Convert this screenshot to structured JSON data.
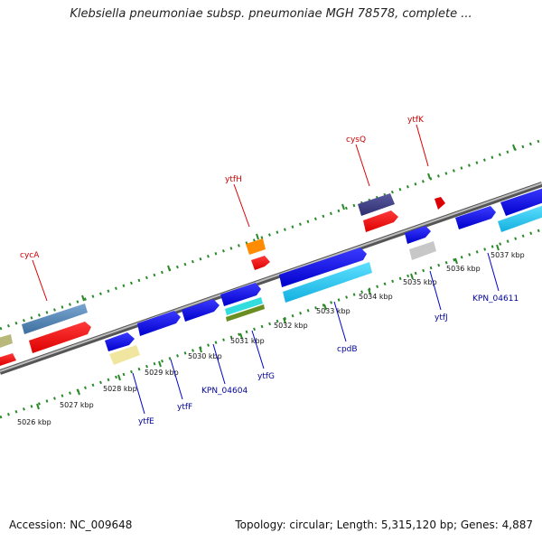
{
  "title": "Klebsiella pneumoniae subsp. pneumoniae MGH 78578, complete ...",
  "footer": {
    "accession": "Accession: NC_009648",
    "summary": "Topology: circular; Length: 5,315,120 bp; Genes: 4,887"
  },
  "colors": {
    "backbone": "#888888",
    "tick_dots": "#2a8a2a",
    "label_red": "#cc0000",
    "label_blue": "#000099",
    "leader_red": "#dd0000",
    "leader_blue": "#0000cc"
  },
  "scale_labels": [
    "5026 kbp",
    "5027 kbp",
    "5028 kbp",
    "5029 kbp",
    "5030 kbp",
    "5031 kbp",
    "5032 kbp",
    "5033 kbp",
    "5034 kbp",
    "5035 kbp",
    "5036 kbp",
    "5037 kbp"
  ],
  "gene_labels": [
    {
      "id": "cycA",
      "text": "cycA",
      "color": "red"
    },
    {
      "id": "ytfH",
      "text": "ytfH",
      "color": "red"
    },
    {
      "id": "cysQ",
      "text": "cysQ",
      "color": "red"
    },
    {
      "id": "ytfK",
      "text": "ytfK",
      "color": "red"
    },
    {
      "id": "ytfE",
      "text": "ytfE",
      "color": "blue"
    },
    {
      "id": "ytfF",
      "text": "ytfF",
      "color": "blue"
    },
    {
      "id": "KPN_04604",
      "text": "KPN_04604",
      "color": "blue"
    },
    {
      "id": "ytfG",
      "text": "ytfG",
      "color": "blue"
    },
    {
      "id": "cpdB",
      "text": "cpdB",
      "color": "blue"
    },
    {
      "id": "ytfJ",
      "text": "ytfJ",
      "color": "blue"
    },
    {
      "id": "KPN_04611",
      "text": "KPN_04611",
      "color": "blue"
    }
  ]
}
